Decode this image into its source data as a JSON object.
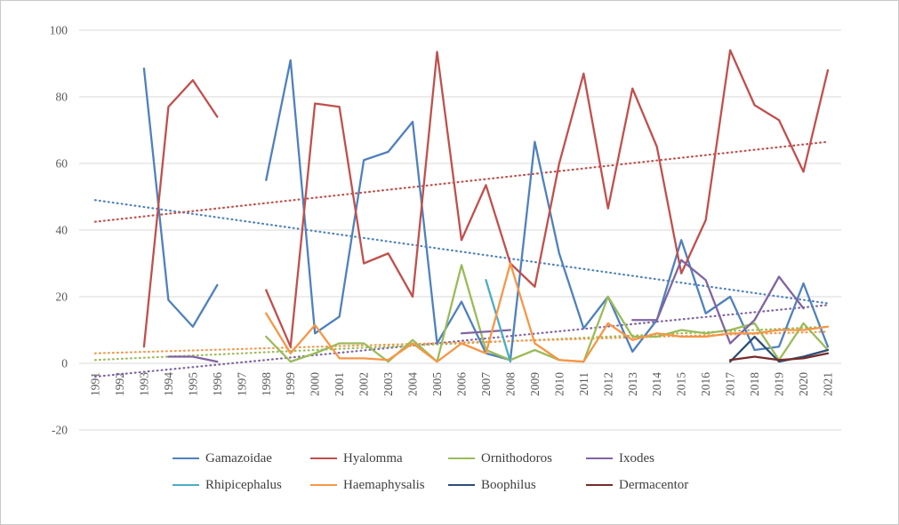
{
  "chart_data": {
    "type": "line",
    "title": "",
    "xlabel": "",
    "ylabel": "",
    "ylim": [
      -20,
      100
    ],
    "y_ticks": [
      100,
      80,
      60,
      40,
      20,
      0,
      -20
    ],
    "grid": "horizontal",
    "legend_position": "bottom",
    "categories": [
      "1991",
      "1992",
      "1993",
      "1994",
      "1995",
      "1996",
      "1997",
      "1998",
      "1999",
      "2000",
      "2001",
      "2002",
      "2003",
      "2004",
      "2005",
      "2006",
      "2007",
      "2008",
      "2009",
      "2010",
      "2011",
      "2012",
      "2013",
      "2014",
      "2015",
      "2016",
      "2017",
      "2018",
      "2019",
      "2020",
      "2021"
    ],
    "series": [
      {
        "name": "Gamazoidae",
        "color": "#4F81BD",
        "values": [
          null,
          null,
          88.5,
          19,
          11,
          23.5,
          null,
          55,
          91,
          9,
          14,
          61,
          63.5,
          72.5,
          6,
          18.5,
          3,
          1,
          66.5,
          33,
          10.5,
          20,
          3.5,
          13,
          37,
          15,
          20,
          4,
          5,
          24,
          5
        ]
      },
      {
        "name": "Hyalomma",
        "color": "#C0504D",
        "values": [
          null,
          null,
          5,
          77,
          85,
          74,
          null,
          22,
          5,
          78,
          77,
          30,
          33,
          20,
          93.5,
          37,
          53.5,
          30,
          23,
          60,
          87,
          46.5,
          82.5,
          65,
          27,
          43,
          94,
          77.5,
          73,
          57.5,
          88
        ]
      },
      {
        "name": "Ornithodoros",
        "color": "#9BBB59",
        "values": [
          null,
          null,
          null,
          null,
          null,
          null,
          null,
          8,
          0.5,
          3,
          6,
          6,
          0.5,
          7,
          0.5,
          29.5,
          4,
          1,
          4,
          1,
          0.5,
          20,
          8,
          8,
          10,
          9,
          10,
          12,
          1,
          12,
          4
        ]
      },
      {
        "name": "Ixodes",
        "color": "#8064A2",
        "values": [
          null,
          null,
          null,
          2,
          2,
          0.5,
          null,
          null,
          null,
          null,
          null,
          null,
          null,
          null,
          null,
          9,
          9.5,
          10,
          null,
          null,
          null,
          null,
          13,
          13,
          31,
          25,
          6,
          13,
          26,
          16.5,
          null
        ]
      },
      {
        "name": "Rhipicephalus",
        "color": "#4BACC6",
        "values": [
          null,
          null,
          null,
          null,
          null,
          null,
          null,
          null,
          null,
          null,
          null,
          null,
          null,
          null,
          null,
          null,
          25,
          0.5,
          null,
          null,
          null,
          null,
          null,
          null,
          null,
          null,
          null,
          null,
          null,
          null,
          null
        ]
      },
      {
        "name": "Haemaphysalis",
        "color": "#F79646",
        "values": [
          null,
          null,
          null,
          null,
          null,
          null,
          null,
          15,
          3,
          11.5,
          1.5,
          1.5,
          1,
          6,
          0.5,
          6,
          3,
          30,
          6,
          1,
          0.5,
          12,
          7,
          9,
          8,
          8,
          9,
          9,
          10,
          10,
          11
        ]
      },
      {
        "name": "Boophilus",
        "color": "#2C4D75",
        "values": [
          null,
          null,
          null,
          null,
          null,
          null,
          null,
          null,
          null,
          null,
          null,
          null,
          null,
          null,
          null,
          null,
          null,
          null,
          null,
          null,
          null,
          null,
          null,
          null,
          null,
          null,
          0.5,
          8,
          0.5,
          2,
          4
        ]
      },
      {
        "name": "Dermacentor",
        "color": "#772C2A",
        "values": [
          null,
          null,
          null,
          null,
          null,
          null,
          null,
          null,
          null,
          null,
          null,
          null,
          null,
          null,
          null,
          null,
          null,
          null,
          null,
          null,
          null,
          null,
          null,
          null,
          null,
          null,
          1,
          2,
          1,
          1.5,
          3
        ]
      }
    ],
    "trendlines": [
      {
        "series": "Gamazoidae",
        "color": "#4F81BD",
        "start": 49,
        "end": 18
      },
      {
        "series": "Hyalomma",
        "color": "#C0504D",
        "start": 42.5,
        "end": 66.5
      },
      {
        "series": "Ixodes",
        "color": "#8064A2",
        "start": -4,
        "end": 17.5
      },
      {
        "series": "Ornithodoros",
        "color": "#9BBB59",
        "start": 1,
        "end": 11
      },
      {
        "series": "Haemaphysalis",
        "color": "#F79646",
        "start": 3,
        "end": 9.5
      }
    ],
    "legend_rows": [
      [
        "Gamazoidae",
        "Hyalomma",
        "Ornithodoros",
        "Ixodes"
      ],
      [
        "Rhipicephalus",
        "Haemaphysalis",
        "Boophilus",
        "Dermacentor"
      ]
    ]
  }
}
